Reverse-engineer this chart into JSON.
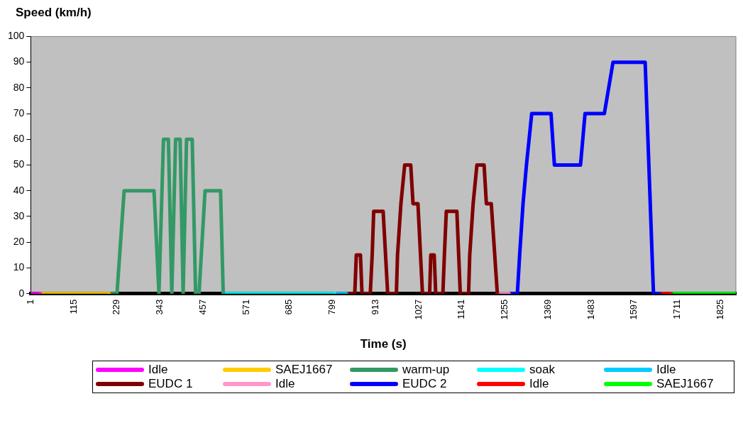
{
  "chart_data": {
    "type": "line",
    "xlabel": "Time (s)",
    "ylabel": "Speed (km/h)",
    "xlim": [
      1,
      1866
    ],
    "xticks": [
      1,
      115,
      229,
      343,
      457,
      571,
      685,
      799,
      913,
      1027,
      1141,
      1255,
      1369,
      1483,
      1597,
      1711,
      1825
    ],
    "ylim": [
      0,
      100
    ],
    "yticks": [
      0,
      10,
      20,
      30,
      40,
      50,
      60,
      70,
      80,
      90,
      100
    ],
    "grid": false,
    "legend": "bottom",
    "marker": "none",
    "line_style": "solid",
    "series": [
      {
        "name": "Idle",
        "color": "#ff00ff",
        "x": [
          1,
          26
        ],
        "values": [
          0,
          0
        ]
      },
      {
        "name": "SAEJ1667",
        "color": "#ffcc00",
        "x": [
          26,
          208
        ],
        "values": [
          0,
          0
        ]
      },
      {
        "name": "warm-up",
        "color": "#339966",
        "x": [
          208,
          229,
          248,
          327,
          340,
          352,
          365,
          374,
          384,
          396,
          404,
          413,
          428,
          437,
          446,
          462,
          503,
          510
        ],
        "values": [
          0,
          0,
          40,
          40,
          0,
          60,
          60,
          0,
          60,
          60,
          0,
          60,
          60,
          0,
          0,
          40,
          40,
          0
        ]
      },
      {
        "name": "soak",
        "color": "#00ffff",
        "x": [
          510,
          805
        ],
        "values": [
          0,
          0
        ]
      },
      {
        "name": "Idle",
        "color": "#00ccff",
        "x": [
          805,
          836
        ],
        "values": [
          0,
          0
        ]
      },
      {
        "name": "EUDC 1",
        "color": "#800000",
        "x": [
          836,
          858,
          862,
          873,
          877,
          899,
          904,
          908,
          933,
          945,
          968,
          971,
          980,
          990,
          1006,
          1012,
          1025,
          1037,
          1056,
          1059,
          1068,
          1072,
          1091,
          1095,
          1100,
          1128,
          1137,
          1159,
          1162,
          1171,
          1181,
          1200,
          1206,
          1219,
          1235
        ],
        "values": [
          0,
          0,
          15,
          15,
          0,
          0,
          15,
          32,
          32,
          0,
          0,
          15,
          35,
          50,
          50,
          35,
          35,
          0,
          0,
          15,
          15,
          0,
          0,
          15,
          32,
          32,
          0,
          0,
          15,
          35,
          50,
          50,
          35,
          35,
          0
        ]
      },
      {
        "name": "Idle",
        "color": "#ff99cc",
        "x": [
          1235,
          1266
        ],
        "values": [
          0,
          0
        ]
      },
      {
        "name": "EUDC 2",
        "color": "#0000ff",
        "x": [
          1266,
          1288,
          1294,
          1303,
          1312,
          1326,
          1377,
          1386,
          1455,
          1467,
          1518,
          1541,
          1626,
          1648,
          1664
        ],
        "values": [
          0,
          0,
          15,
          35,
          50,
          70,
          70,
          50,
          50,
          70,
          70,
          90,
          90,
          0,
          0
        ]
      },
      {
        "name": "Idle",
        "color": "#ff0000",
        "x": [
          1664,
          1695
        ],
        "values": [
          0,
          0
        ]
      },
      {
        "name": "SAEJ1667",
        "color": "#00ff00",
        "x": [
          1695,
          1866
        ],
        "values": [
          0,
          0
        ]
      }
    ]
  }
}
